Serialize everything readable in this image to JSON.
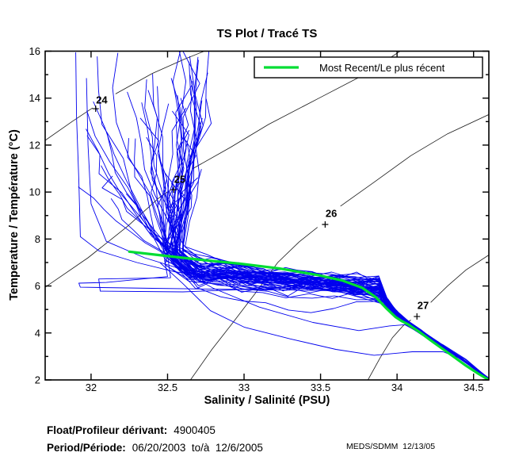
{
  "title": "TS Plot / Tracé TS",
  "legend": {
    "label": "Most Recent/Le plus récent",
    "line_color": "#00dd33"
  },
  "axes": {
    "xlabel": "Salinity / Salinité (PSU)",
    "ylabel": "Temperature / Température (°C)",
    "xlim": [
      31.7,
      34.6
    ],
    "ylim": [
      2,
      16
    ],
    "xticks": [
      32,
      32.5,
      33,
      33.5,
      34,
      34.5
    ],
    "yticks": [
      2,
      4,
      6,
      8,
      10,
      12,
      14,
      16
    ],
    "yminor": [
      3,
      5,
      7,
      9,
      11,
      13,
      15
    ]
  },
  "footer": {
    "float_label": "Float/Profileur dérivant:",
    "float_value": "4900405",
    "period_label": "Period/Période:",
    "period_value": "06/20/2003  to/à  12/6/2005",
    "credit": "MEDS/SDMM  12/13/05"
  },
  "chart_data": {
    "type": "line",
    "title": "TS Plot / Tracé TS",
    "xlabel": "Salinity / Salinité (PSU)",
    "ylabel": "Temperature / Température (°C)",
    "xlim": [
      31.7,
      34.6
    ],
    "ylim": [
      2,
      16
    ],
    "grid": false,
    "legend_position": "top-right-inside",
    "isopycnals": [
      {
        "label": "24",
        "label_at": [
          32.07,
          13.92
        ],
        "plus_at": [
          32.03,
          13.55
        ],
        "pre": [
          [
            31.7,
            12.2
          ],
          [
            31.88,
            13.02
          ],
          [
            32.01,
            13.58
          ]
        ],
        "post": [
          [
            32.16,
            14.18
          ],
          [
            32.4,
            15.05
          ],
          [
            32.61,
            15.66
          ],
          [
            32.74,
            16.0
          ]
        ]
      },
      {
        "label": "25",
        "label_at": [
          32.58,
          10.55
        ],
        "plus_at": [
          32.54,
          10.1
        ],
        "pre": [
          [
            31.7,
            5.95
          ],
          [
            31.98,
            7.2
          ],
          [
            32.24,
            8.55
          ],
          [
            32.44,
            9.73
          ],
          [
            32.51,
            10.05
          ]
        ],
        "post": [
          [
            32.66,
            10.98
          ],
          [
            32.91,
            11.9
          ],
          [
            33.16,
            12.88
          ],
          [
            33.49,
            14.0
          ],
          [
            33.8,
            15.05
          ],
          [
            34.02,
            16.0
          ]
        ]
      },
      {
        "label": "26",
        "label_at": [
          33.57,
          9.1
        ],
        "plus_at": [
          33.53,
          8.62
        ],
        "pre": [
          [
            32.65,
            2.0
          ],
          [
            32.79,
            3.3
          ],
          [
            32.92,
            4.38
          ],
          [
            33.07,
            5.66
          ],
          [
            33.22,
            7.0
          ],
          [
            33.36,
            7.88
          ],
          [
            33.48,
            8.5
          ]
        ],
        "post": [
          [
            33.63,
            9.4
          ],
          [
            33.85,
            10.42
          ],
          [
            34.09,
            11.55
          ],
          [
            34.33,
            12.48
          ],
          [
            34.6,
            13.3
          ]
        ]
      },
      {
        "label": "27",
        "label_at": [
          34.17,
          5.17
        ],
        "plus_at": [
          34.13,
          4.7
        ],
        "pre": [
          [
            33.81,
            2.0
          ],
          [
            33.89,
            2.95
          ],
          [
            33.97,
            3.8
          ],
          [
            34.04,
            4.31
          ],
          [
            34.09,
            4.55
          ]
        ],
        "post": [
          [
            34.22,
            5.3
          ],
          [
            34.33,
            6.0
          ],
          [
            34.45,
            6.68
          ],
          [
            34.6,
            7.32
          ]
        ]
      }
    ],
    "most_recent": {
      "name": "Most Recent/Le plus récent",
      "color": "#00dd33",
      "line_width": 3.2,
      "points": [
        [
          32.25,
          7.46
        ],
        [
          32.44,
          7.32
        ],
        [
          32.71,
          7.12
        ],
        [
          32.97,
          6.95
        ],
        [
          33.23,
          6.75
        ],
        [
          33.48,
          6.47
        ],
        [
          33.64,
          6.24
        ],
        [
          33.77,
          5.93
        ],
        [
          33.86,
          5.53
        ],
        [
          33.93,
          5.05
        ],
        [
          33.99,
          4.68
        ],
        [
          34.03,
          4.51
        ],
        [
          34.07,
          4.37
        ],
        [
          34.14,
          4.07
        ],
        [
          34.24,
          3.59
        ],
        [
          34.35,
          3.08
        ],
        [
          34.45,
          2.61
        ],
        [
          34.53,
          2.27
        ],
        [
          34.6,
          2.0
        ]
      ]
    },
    "profiles": {
      "color": "#0000ee",
      "line_width": 0.9,
      "count": 57,
      "seed": 11,
      "surface_s_range": [
        31.95,
        32.75
      ],
      "surface_t_range": [
        8.3,
        16.3
      ],
      "convergence_s_range": [
        32.47,
        32.62
      ],
      "convergence_t_range": [
        6.9,
        7.8
      ],
      "mid_band_t_end_range": [
        5.55,
        6.3
      ],
      "shelf": [
        [
          33.94,
          5.2
        ],
        [
          34.0,
          4.78
        ],
        [
          34.07,
          4.42
        ],
        [
          34.16,
          4.02
        ],
        [
          34.27,
          3.55
        ],
        [
          34.38,
          3.08
        ],
        [
          34.48,
          2.62
        ],
        [
          34.545,
          2.28
        ],
        [
          34.6,
          2.03
        ]
      ],
      "specials": [
        [
          [
            31.9,
            15.95
          ],
          [
            31.905,
            13.2
          ],
          [
            31.92,
            10.5
          ],
          [
            31.93,
            8.1
          ],
          [
            32.05,
            7.5
          ],
          [
            32.3,
            7.0
          ],
          [
            32.55,
            6.6
          ],
          [
            33.0,
            6.3
          ],
          [
            33.5,
            6.15
          ],
          [
            33.88,
            5.5
          ],
          [
            34.0,
            4.8
          ],
          [
            34.1,
            4.35
          ],
          [
            34.25,
            3.6
          ],
          [
            34.4,
            3.0
          ],
          [
            34.5,
            2.5
          ],
          [
            34.6,
            2.05
          ]
        ],
        [
          [
            31.97,
            14.85
          ],
          [
            31.98,
            12.0
          ],
          [
            32.0,
            9.5
          ],
          [
            32.1,
            7.9
          ],
          [
            32.35,
            7.2
          ],
          [
            32.6,
            6.7
          ],
          [
            33.1,
            6.4
          ],
          [
            33.6,
            6.05
          ],
          [
            33.9,
            5.3
          ],
          [
            34.0,
            4.7
          ],
          [
            34.12,
            4.2
          ],
          [
            34.3,
            3.4
          ],
          [
            34.45,
            2.8
          ],
          [
            34.6,
            2.08
          ]
        ],
        [
          [
            32.48,
            7.1
          ],
          [
            32.5,
            6.4
          ],
          [
            32.1,
            6.15
          ],
          [
            31.92,
            6.12
          ],
          [
            31.93,
            5.95
          ],
          [
            32.4,
            5.9
          ],
          [
            33.0,
            5.85
          ],
          [
            33.6,
            5.8
          ],
          [
            33.9,
            5.25
          ],
          [
            34.0,
            4.72
          ],
          [
            34.1,
            4.3
          ],
          [
            34.28,
            3.5
          ],
          [
            34.42,
            2.95
          ],
          [
            34.52,
            2.4
          ],
          [
            34.6,
            2.03
          ]
        ],
        [
          [
            32.5,
            7.3
          ],
          [
            32.52,
            6.35
          ],
          [
            32.05,
            6.3
          ],
          [
            32.06,
            5.78
          ],
          [
            32.6,
            5.75
          ],
          [
            33.2,
            5.9
          ],
          [
            33.7,
            5.85
          ],
          [
            33.92,
            5.2
          ],
          [
            34.02,
            4.65
          ],
          [
            34.12,
            4.25
          ],
          [
            34.3,
            3.45
          ],
          [
            34.45,
            2.85
          ],
          [
            34.6,
            2.06
          ]
        ],
        [
          [
            32.45,
            7.0
          ],
          [
            32.6,
            6.1
          ],
          [
            32.78,
            4.95
          ],
          [
            33.0,
            4.25
          ],
          [
            33.3,
            3.75
          ],
          [
            33.6,
            3.3
          ],
          [
            33.85,
            3.05
          ],
          [
            34.1,
            3.2
          ],
          [
            34.3,
            3.2
          ],
          [
            34.42,
            2.9
          ],
          [
            34.52,
            2.42
          ],
          [
            34.6,
            2.04
          ]
        ],
        [
          [
            32.55,
            6.8
          ],
          [
            32.8,
            5.9
          ],
          [
            33.1,
            5.1
          ],
          [
            33.45,
            4.45
          ],
          [
            33.75,
            4.1
          ],
          [
            33.95,
            4.3
          ],
          [
            34.05,
            4.35
          ],
          [
            34.18,
            3.9
          ],
          [
            34.3,
            3.5
          ],
          [
            34.45,
            2.88
          ],
          [
            34.6,
            2.05
          ]
        ]
      ]
    }
  }
}
